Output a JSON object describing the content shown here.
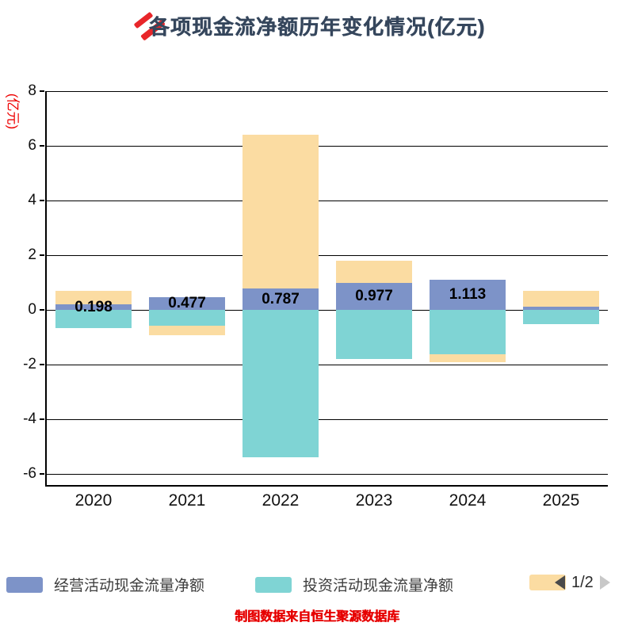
{
  "title": "各项现金流净额历年变化情况(亿元)",
  "y_axis_label": "(亿元)",
  "caption": "制图数据来自恒生聚源数据库",
  "pagination": {
    "current": "1/2"
  },
  "colors": {
    "operating": "#7d93c8",
    "investing": "#7fd4d4",
    "financing": "#fbdca2",
    "title": "#35465c",
    "accent_red": "#e8262a",
    "axis": "#000000"
  },
  "legend": [
    {
      "label": "经营活动现金流量净额",
      "color": "#7d93c8"
    },
    {
      "label": "投资活动现金流量净额",
      "color": "#7fd4d4"
    },
    {
      "label": "",
      "color": "#fbdca2"
    }
  ],
  "chart_data": {
    "type": "bar",
    "stacked": true,
    "title": "各项现金流净额历年变化情况(亿元)",
    "ylabel": "(亿元)",
    "categories": [
      "2020",
      "2021",
      "2022",
      "2023",
      "2024",
      "2025"
    ],
    "series": [
      {
        "name": "经营活动现金流量净额",
        "color": "#7d93c8",
        "values": [
          0.198,
          0.477,
          0.787,
          0.977,
          1.113,
          0.11
        ]
      },
      {
        "name": "投资活动现金流量净额",
        "color": "#7fd4d4",
        "values": [
          -0.67,
          -0.58,
          -5.39,
          -1.8,
          -1.62,
          -0.52
        ]
      },
      {
        "name": "",
        "color": "#fbdca2",
        "values": [
          0.5,
          -0.35,
          5.62,
          0.82,
          -0.29,
          0.6
        ]
      }
    ],
    "bar_labels": [
      "0.198",
      "0.477",
      "0.787",
      "0.977",
      "1.113",
      ""
    ],
    "yticks": [
      8,
      6,
      4,
      2,
      0,
      -2,
      -4,
      -6
    ],
    "ylim": [
      -6.4,
      8
    ],
    "grid": true,
    "legend_position": "bottom"
  }
}
